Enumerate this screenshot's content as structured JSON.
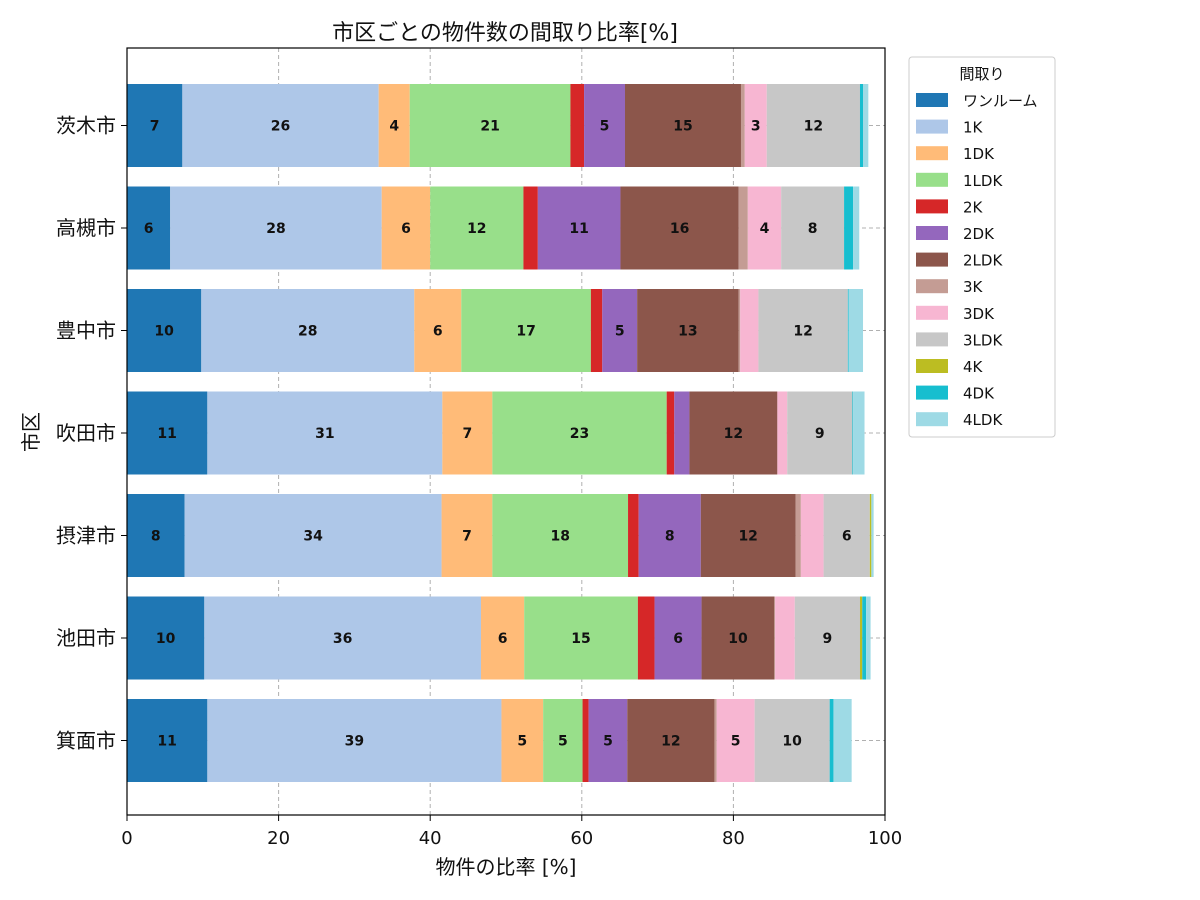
{
  "chart_data": {
    "type": "bar",
    "orientation": "horizontal",
    "stacked": true,
    "title": "市区ごとの物件数の間取り比率[%]",
    "xlabel": "物件の比率 [%]",
    "ylabel": "市区",
    "xlim": [
      0,
      100
    ],
    "xticks": [
      0,
      20,
      40,
      60,
      80,
      100
    ],
    "grid": true,
    "legend_title": "間取り",
    "legend_position": "outside-right-top",
    "categories": [
      "茨木市",
      "高槻市",
      "豊中市",
      "吹田市",
      "摂津市",
      "池田市",
      "箕面市"
    ],
    "series": [
      {
        "name": "ワンルーム",
        "color": "#1f77b4",
        "values": [
          7.3,
          5.7,
          9.8,
          10.6,
          7.6,
          10.2,
          10.6
        ]
      },
      {
        "name": "1K",
        "color": "#aec7e8",
        "values": [
          25.9,
          27.9,
          28.1,
          31.0,
          33.9,
          36.5,
          38.8
        ]
      },
      {
        "name": "1DK",
        "color": "#ffbb78",
        "values": [
          4.1,
          6.4,
          6.2,
          6.6,
          6.7,
          5.7,
          5.5
        ]
      },
      {
        "name": "1LDK",
        "color": "#98df8a",
        "values": [
          21.2,
          12.3,
          17.1,
          23.0,
          17.9,
          15.0,
          5.2
        ]
      },
      {
        "name": "2K",
        "color": "#d62728",
        "values": [
          1.8,
          1.9,
          1.5,
          1.0,
          1.4,
          2.2,
          0.8
        ]
      },
      {
        "name": "2DK",
        "color": "#9467bd",
        "values": [
          5.4,
          10.9,
          4.6,
          2.0,
          8.2,
          6.2,
          5.1
        ]
      },
      {
        "name": "2LDK",
        "color": "#8c564b",
        "values": [
          15.3,
          15.6,
          13.4,
          11.6,
          12.5,
          9.6,
          11.5
        ]
      },
      {
        "name": "3K",
        "color": "#c49c94",
        "values": [
          0.5,
          1.2,
          0.2,
          0.0,
          0.7,
          0.1,
          0.3
        ]
      },
      {
        "name": "3DK",
        "color": "#f7b6d2",
        "values": [
          2.9,
          4.4,
          2.4,
          1.3,
          3.0,
          2.6,
          5.0
        ]
      },
      {
        "name": "3LDK",
        "color": "#c7c7c7",
        "values": [
          12.3,
          8.3,
          11.8,
          8.6,
          6.1,
          8.6,
          9.9
        ]
      },
      {
        "name": "4K",
        "color": "#bcbd22",
        "values": [
          0.0,
          0.0,
          0.0,
          0.0,
          0.2,
          0.3,
          0.0
        ]
      },
      {
        "name": "4DK",
        "color": "#17becf",
        "values": [
          0.4,
          1.2,
          0.1,
          0.1,
          0.0,
          0.5,
          0.5
        ]
      },
      {
        "name": "4LDK",
        "color": "#9edae5",
        "values": [
          0.7,
          0.8,
          1.9,
          1.5,
          0.3,
          0.6,
          2.4
        ]
      }
    ],
    "data_labels": [
      [
        "7",
        "26",
        "4",
        "21",
        "",
        "5",
        "15",
        "",
        "3",
        "12",
        "",
        "",
        ""
      ],
      [
        "6",
        "28",
        "6",
        "12",
        "",
        "11",
        "16",
        "",
        "4",
        "8",
        "",
        "",
        ""
      ],
      [
        "10",
        "28",
        "6",
        "17",
        "",
        "5",
        "13",
        "",
        "",
        "12",
        "",
        "",
        ""
      ],
      [
        "11",
        "31",
        "7",
        "23",
        "",
        "",
        "12",
        "",
        "",
        "9",
        "",
        "",
        ""
      ],
      [
        "8",
        "34",
        "7",
        "18",
        "",
        "8",
        "12",
        "",
        "",
        "6",
        "",
        "",
        ""
      ],
      [
        "10",
        "36",
        "6",
        "15",
        "",
        "6",
        "10",
        "",
        "",
        "9",
        "",
        "",
        ""
      ],
      [
        "11",
        "39",
        "5",
        "5",
        "",
        "5",
        "12",
        "",
        "5",
        "10",
        "",
        "",
        ""
      ]
    ]
  }
}
